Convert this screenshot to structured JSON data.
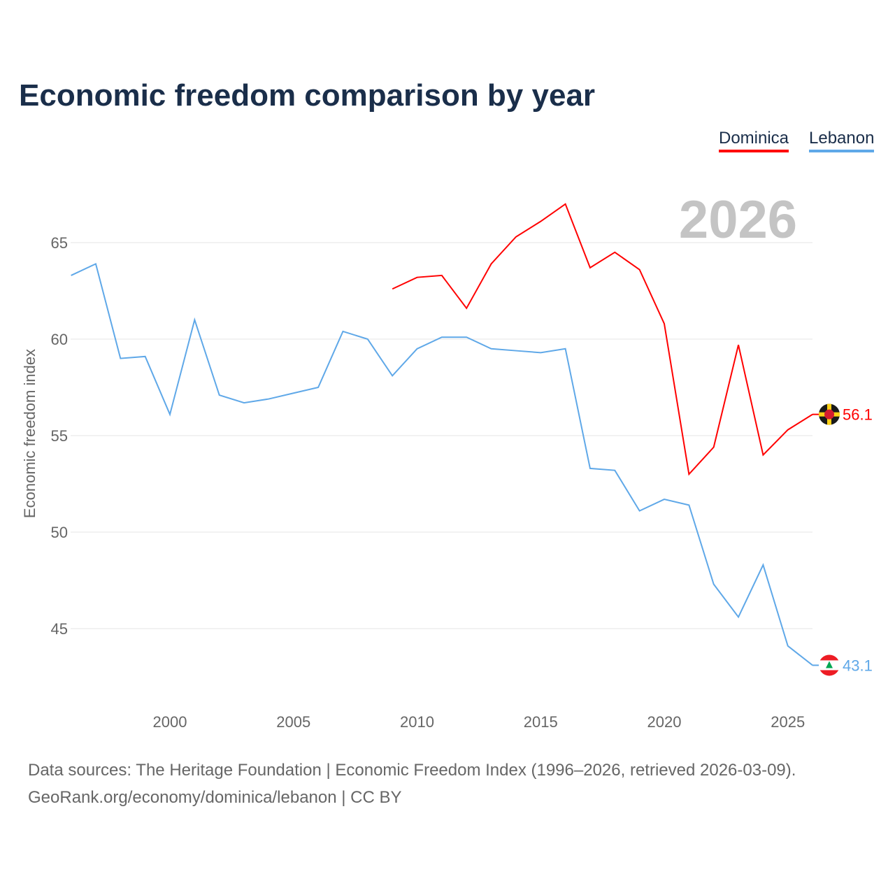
{
  "title": "Economic freedom comparison by year",
  "footer": {
    "line1": "Data sources: The Heritage Foundation | Economic Freedom Index (1996–2026, retrieved 2026-03-09).",
    "line2": "GeoRank.org/economy/dominica/lebanon | CC BY"
  },
  "chart_data": {
    "type": "line",
    "title": "Economic freedom comparison by year",
    "xlabel": "",
    "ylabel": "Economic freedom index",
    "year_label": "2026",
    "xlim": [
      1996,
      2026
    ],
    "ylim": [
      41,
      69
    ],
    "x_ticks": [
      2000,
      2005,
      2010,
      2015,
      2020,
      2025
    ],
    "y_ticks": [
      45,
      50,
      55,
      60,
      65
    ],
    "grid": true,
    "legend_position": "top-right",
    "series": [
      {
        "name": "Dominica",
        "color": "#ff0000",
        "end_label": "56.1",
        "flag_icon": "dominica-flag-icon",
        "x": [
          2009,
          2010,
          2011,
          2012,
          2013,
          2014,
          2015,
          2016,
          2017,
          2018,
          2019,
          2020,
          2021,
          2022,
          2023,
          2024,
          2025,
          2026
        ],
        "values": [
          62.6,
          63.2,
          63.3,
          61.6,
          63.9,
          65.3,
          66.1,
          67.0,
          63.7,
          64.5,
          63.6,
          60.8,
          53.0,
          54.4,
          59.7,
          54.0,
          55.3,
          56.1
        ]
      },
      {
        "name": "Lebanon",
        "color": "#5fa8e8",
        "end_label": "43.1",
        "flag_icon": "lebanon-flag-icon",
        "x": [
          1996,
          1997,
          1998,
          1999,
          2000,
          2001,
          2002,
          2003,
          2004,
          2005,
          2006,
          2007,
          2008,
          2009,
          2010,
          2011,
          2012,
          2013,
          2014,
          2015,
          2016,
          2017,
          2018,
          2019,
          2020,
          2021,
          2022,
          2023,
          2024,
          2025,
          2026
        ],
        "values": [
          63.3,
          63.9,
          59.0,
          59.1,
          56.1,
          61.0,
          57.1,
          56.7,
          56.9,
          57.2,
          57.5,
          60.4,
          60.0,
          58.1,
          59.5,
          60.1,
          60.1,
          59.5,
          59.4,
          59.3,
          59.5,
          53.3,
          53.2,
          51.1,
          51.7,
          51.4,
          47.3,
          45.6,
          48.3,
          44.1,
          43.1
        ]
      }
    ]
  }
}
